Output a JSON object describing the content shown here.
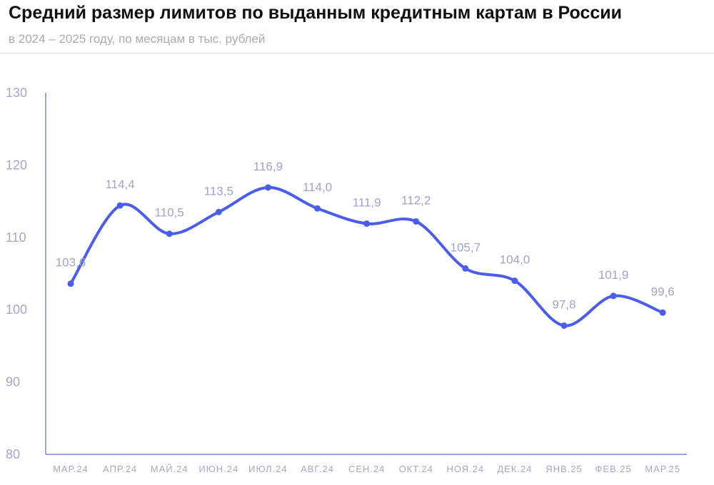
{
  "header": {
    "title": "Средний размер лимитов по выданным кредитным картам в России",
    "subtitle": "в 2024 – 2025 году, по месяцам в тыс. рублей"
  },
  "colors": {
    "line": "#4a5df0",
    "axis": "#7f86d9",
    "tick_text": "#a3a6cf",
    "divider": "#d9d9df"
  },
  "chart_data": {
    "type": "line",
    "title": "Средний размер лимитов по выданным кредитным картам в России",
    "subtitle": "в 2024 – 2025 году, по месяцам в тыс. рублей",
    "categories": [
      "МАР.24",
      "АПР.24",
      "МАЙ.24",
      "ИЮН.24",
      "ИЮЛ.24",
      "АВГ.24",
      "СЕН.24",
      "ОКТ.24",
      "НОЯ.24",
      "ДЕК.24",
      "ЯНВ.25",
      "ФЕВ.25",
      "МАР.25"
    ],
    "series": [
      {
        "values": [
          103.6,
          114.4,
          110.5,
          113.5,
          116.9,
          114.0,
          111.9,
          112.2,
          105.7,
          104.0,
          97.8,
          101.9,
          99.6
        ],
        "labels": [
          "103,6",
          "114,4",
          "110,5",
          "113,5",
          "116,9",
          "114,0",
          "111,9",
          "112,2",
          "105,7",
          "104,0",
          "97,8",
          "101,9",
          "99,6"
        ]
      }
    ],
    "ylim": [
      80,
      130
    ],
    "yticks": [
      80,
      90,
      100,
      110,
      120,
      130
    ],
    "xlabel": "",
    "ylabel": "",
    "grid": false,
    "legend": "none",
    "smooth": true
  }
}
